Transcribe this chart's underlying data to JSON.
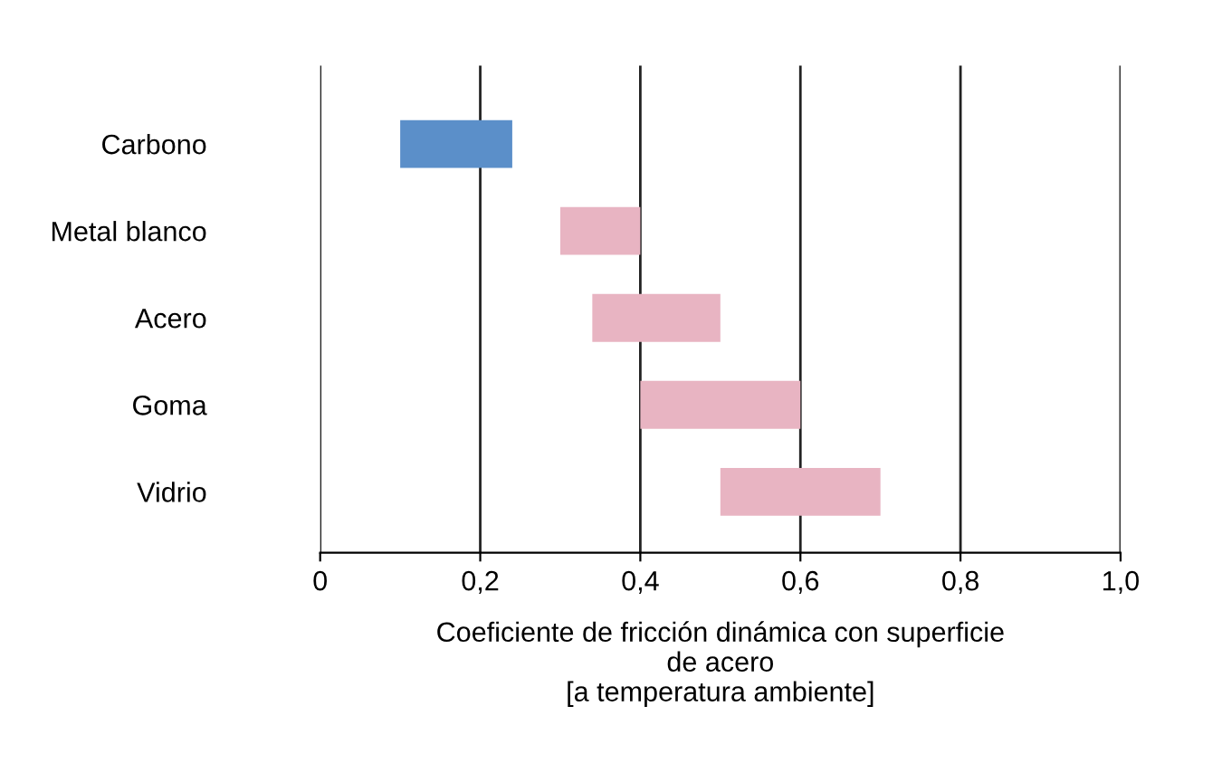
{
  "chart_data": {
    "type": "bar",
    "orientation": "horizontal",
    "categories": [
      "Carbono",
      "Metal blanco",
      "Acero",
      "Goma",
      "Vidrio"
    ],
    "base": [
      0.1,
      0.3,
      0.34,
      0.4,
      0.5
    ],
    "values": [
      0.14,
      0.1,
      0.16,
      0.2,
      0.2
    ],
    "colors": [
      "#5b8fc9",
      "#e8b4c2",
      "#e8b4c2",
      "#e8b4c2",
      "#e8b4c2"
    ],
    "xlim": [
      0,
      1.0
    ],
    "xticks": [
      {
        "value": 0,
        "label": "0"
      },
      {
        "value": 0.2,
        "label": "0,2"
      },
      {
        "value": 0.4,
        "label": "0,4"
      },
      {
        "value": 0.6,
        "label": "0,6"
      },
      {
        "value": 0.8,
        "label": "0,8"
      },
      {
        "value": 1.0,
        "label": "1,0"
      }
    ],
    "xlabel": "Coeficiente de fricción dinámica con superficie\nde acero\n[a temperatura ambiente]",
    "grid": "x"
  }
}
